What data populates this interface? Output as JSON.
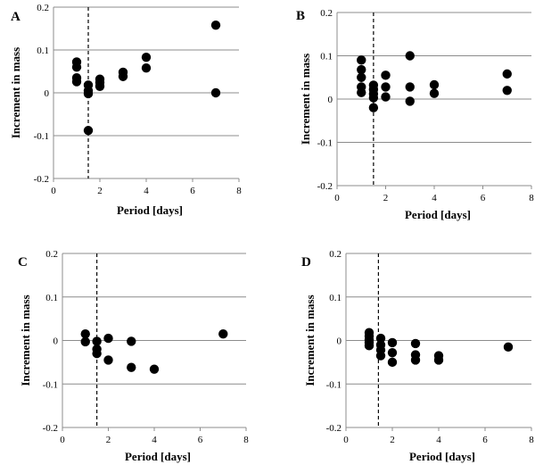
{
  "chart_data": [
    {
      "panel": "A",
      "type": "scatter",
      "xlabel": "Period [days]",
      "ylabel": "Increment in mass",
      "xlim": [
        0,
        8
      ],
      "ylim": [
        -0.2,
        0.2
      ],
      "xticks": [
        "0",
        "2",
        "4",
        "6",
        "8"
      ],
      "yticks": [
        "0.2",
        "0.1",
        "0",
        "-0.1",
        "-0.2"
      ],
      "grid": "horizontal",
      "reference_line_x": 1.5,
      "points": [
        {
          "x": 1,
          "y": 0.072
        },
        {
          "x": 1,
          "y": 0.06
        },
        {
          "x": 1,
          "y": 0.035
        },
        {
          "x": 1,
          "y": 0.026
        },
        {
          "x": 1.5,
          "y": 0.018
        },
        {
          "x": 1.5,
          "y": 0.005
        },
        {
          "x": 1.5,
          "y": -0.002
        },
        {
          "x": 1.5,
          "y": -0.088
        },
        {
          "x": 2,
          "y": 0.032
        },
        {
          "x": 2,
          "y": 0.024
        },
        {
          "x": 2,
          "y": 0.015
        },
        {
          "x": 3,
          "y": 0.048
        },
        {
          "x": 3,
          "y": 0.038
        },
        {
          "x": 4,
          "y": 0.083
        },
        {
          "x": 4,
          "y": 0.058
        },
        {
          "x": 7,
          "y": 0.158
        },
        {
          "x": 7,
          "y": 0.0
        }
      ]
    },
    {
      "panel": "B",
      "type": "scatter",
      "xlabel": "Period [days]",
      "ylabel": "Increment in mass",
      "xlim": [
        0,
        8
      ],
      "ylim": [
        -0.2,
        0.2
      ],
      "xticks": [
        "0",
        "2",
        "4",
        "6",
        "8"
      ],
      "yticks": [
        "0.2",
        "0.1",
        "0",
        "-0.1",
        "-0.2"
      ],
      "grid": "horizontal",
      "reference_line_x": 1.5,
      "points": [
        {
          "x": 1,
          "y": 0.09
        },
        {
          "x": 1,
          "y": 0.068
        },
        {
          "x": 1,
          "y": 0.05
        },
        {
          "x": 1,
          "y": 0.028
        },
        {
          "x": 1,
          "y": 0.015
        },
        {
          "x": 1.5,
          "y": 0.032
        },
        {
          "x": 1.5,
          "y": 0.022
        },
        {
          "x": 1.5,
          "y": 0.012
        },
        {
          "x": 1.5,
          "y": 0.003
        },
        {
          "x": 1.5,
          "y": -0.02
        },
        {
          "x": 2,
          "y": 0.055
        },
        {
          "x": 2,
          "y": 0.028
        },
        {
          "x": 2,
          "y": 0.005
        },
        {
          "x": 3,
          "y": 0.1
        },
        {
          "x": 3,
          "y": 0.028
        },
        {
          "x": 3,
          "y": -0.005
        },
        {
          "x": 4,
          "y": 0.033
        },
        {
          "x": 4,
          "y": 0.013
        },
        {
          "x": 7,
          "y": 0.058
        },
        {
          "x": 7,
          "y": 0.02
        }
      ]
    },
    {
      "panel": "C",
      "type": "scatter",
      "xlabel": "Period [days]",
      "ylabel": "Increment in mass",
      "xlim": [
        0,
        8
      ],
      "ylim": [
        -0.2,
        0.2
      ],
      "xticks": [
        "0",
        "2",
        "4",
        "6",
        "8"
      ],
      "yticks": [
        "0.2",
        "0.1",
        "0",
        "-0.1",
        "-0.2"
      ],
      "grid": "horizontal",
      "reference_line_x": 1.5,
      "points": [
        {
          "x": 1,
          "y": 0.015
        },
        {
          "x": 1,
          "y": -0.003
        },
        {
          "x": 1.5,
          "y": -0.002
        },
        {
          "x": 1.5,
          "y": -0.02
        },
        {
          "x": 1.5,
          "y": -0.03
        },
        {
          "x": 2,
          "y": 0.005
        },
        {
          "x": 2,
          "y": -0.045
        },
        {
          "x": 3,
          "y": -0.002
        },
        {
          "x": 3,
          "y": -0.062
        },
        {
          "x": 4,
          "y": -0.066
        },
        {
          "x": 7,
          "y": 0.015
        }
      ]
    },
    {
      "panel": "D",
      "type": "scatter",
      "xlabel": "Period [days]",
      "ylabel": "Increment in mass",
      "xlim": [
        0,
        8
      ],
      "ylim": [
        -0.2,
        0.2
      ],
      "xticks": [
        "0",
        "2",
        "4",
        "6",
        "8"
      ],
      "yticks": [
        "0.2",
        "0.1",
        "0",
        "-0.1",
        "-0.2"
      ],
      "grid": "horizontal",
      "reference_line_x": 1.4,
      "points": [
        {
          "x": 1,
          "y": 0.018
        },
        {
          "x": 1,
          "y": 0.01
        },
        {
          "x": 1,
          "y": 0.002
        },
        {
          "x": 1,
          "y": -0.005
        },
        {
          "x": 1,
          "y": -0.012
        },
        {
          "x": 1.5,
          "y": 0.005
        },
        {
          "x": 1.5,
          "y": -0.01
        },
        {
          "x": 1.5,
          "y": -0.022
        },
        {
          "x": 1.5,
          "y": -0.035
        },
        {
          "x": 2,
          "y": -0.005
        },
        {
          "x": 2,
          "y": -0.028
        },
        {
          "x": 2,
          "y": -0.05
        },
        {
          "x": 3,
          "y": -0.007
        },
        {
          "x": 3,
          "y": -0.033
        },
        {
          "x": 3,
          "y": -0.045
        },
        {
          "x": 4,
          "y": -0.035
        },
        {
          "x": 4,
          "y": -0.045
        },
        {
          "x": 7,
          "y": -0.015
        }
      ]
    }
  ]
}
